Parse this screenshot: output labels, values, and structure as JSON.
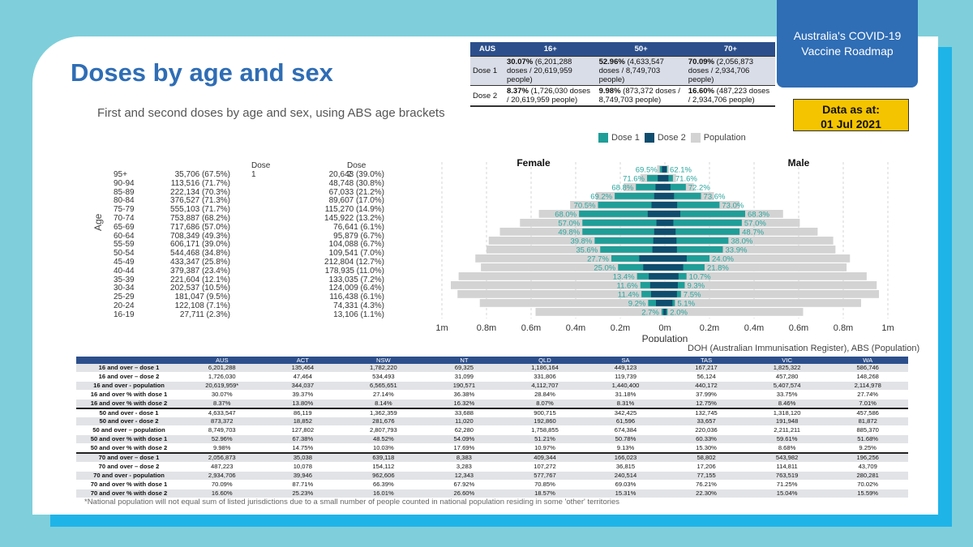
{
  "header": {
    "title": "Doses by age and sex",
    "subtitle": "First and second doses by age and sex, using ABS age brackets",
    "roadmap_line1": "Australia's COVID-19",
    "roadmap_line2": "Vaccine Roadmap",
    "data_as_at_line1": "Data as at:",
    "data_as_at_line2": "01 Jul 2021"
  },
  "summary_table": {
    "headers": [
      "AUS",
      "16+",
      "50+",
      "70+"
    ],
    "rows": [
      {
        "label": "Dose 1",
        "cells": [
          {
            "pct": "30.07%",
            "rest": " (6,201,288 doses / 20,619,959 people)"
          },
          {
            "pct": "52.96%",
            "rest": " (4,633,547 doses / 8,749,703 people)"
          },
          {
            "pct": "70.09%",
            "rest": " (2,056,873 doses / 2,934,706 people)"
          }
        ]
      },
      {
        "label": "Dose 2",
        "cells": [
          {
            "pct": "8.37%",
            "rest": " (1,726,030 doses / 20,619,959 people)"
          },
          {
            "pct": "9.98%",
            "rest": " (873,372 doses / 8,749,703 people)"
          },
          {
            "pct": "16.60%",
            "rest": " (487,223 doses / 2,934,706 people)"
          }
        ]
      }
    ]
  },
  "legend": {
    "dose1": "Dose 1",
    "dose2": "Dose 2",
    "population": "Population",
    "colors": {
      "dose1": "#1f9e98",
      "dose2": "#0e4d6e",
      "population": "#d3d3d3",
      "label": "#2aa59e"
    }
  },
  "dose_table": {
    "age_label": "Age",
    "dose1_header": "Dose 1",
    "dose2_header": "Dose 2",
    "rows": [
      {
        "age": "95+",
        "d1": "35,706 (67.5%)",
        "d2": "20,643 (39.0%)"
      },
      {
        "age": "90-94",
        "d1": "113,516 (71.7%)",
        "d2": "48,748 (30.8%)"
      },
      {
        "age": "85-89",
        "d1": "222,134 (70.3%)",
        "d2": "67,033 (21.2%)"
      },
      {
        "age": "80-84",
        "d1": "376,527 (71.3%)",
        "d2": "89,607 (17.0%)"
      },
      {
        "age": "75-79",
        "d1": "555,103 (71.7%)",
        "d2": "115,270 (14.9%)"
      },
      {
        "age": "70-74",
        "d1": "753,887 (68.2%)",
        "d2": "145,922 (13.2%)"
      },
      {
        "age": "65-69",
        "d1": "717,686 (57.0%)",
        "d2": "76,641 (6.1%)"
      },
      {
        "age": "60-64",
        "d1": "708,349 (49.3%)",
        "d2": "95,879 (6.7%)"
      },
      {
        "age": "55-59",
        "d1": "606,171 (39.0%)",
        "d2": "104,088 (6.7%)"
      },
      {
        "age": "50-54",
        "d1": "544,468 (34.8%)",
        "d2": "109,541 (7.0%)"
      },
      {
        "age": "45-49",
        "d1": "433,347 (25.8%)",
        "d2": "212,804 (12.7%)"
      },
      {
        "age": "40-44",
        "d1": "379,387 (23.4%)",
        "d2": "178,935 (11.0%)"
      },
      {
        "age": "35-39",
        "d1": "221,604 (12.1%)",
        "d2": "133,035 (7.2%)"
      },
      {
        "age": "30-34",
        "d1": "202,537 (10.5%)",
        "d2": "124,009 (6.4%)"
      },
      {
        "age": "25-29",
        "d1": "181,047 (9.5%)",
        "d2": "116,438 (6.1%)"
      },
      {
        "age": "20-24",
        "d1": "122,108 (7.1%)",
        "d2": "74,331 (4.3%)"
      },
      {
        "age": "16-19",
        "d1": "27,711 (2.3%)",
        "d2": "13,106 (1.1%)"
      }
    ]
  },
  "chart_data": {
    "type": "bar",
    "orientation": "horizontal-population-pyramid",
    "categories": [
      "95+",
      "90-94",
      "85-89",
      "80-84",
      "75-79",
      "70-74",
      "65-69",
      "60-64",
      "55-59",
      "50-54",
      "45-49",
      "40-44",
      "35-39",
      "30-34",
      "25-29",
      "20-24",
      "16-19"
    ],
    "xlabel": "Population",
    "xticks": [
      "1m",
      "0.8m",
      "0.6m",
      "0.4m",
      "0.2m",
      "0m",
      "0.2m",
      "0.4m",
      "0.6m",
      "0.8m",
      "1m"
    ],
    "xlim": [
      -1000000,
      1000000
    ],
    "sides": {
      "left": "Female",
      "right": "Male"
    },
    "series": [
      {
        "name": "Population",
        "female": [
          35000,
          110000,
          185000,
          310000,
          425000,
          565000,
          650000,
          740000,
          790000,
          800000,
          850000,
          825000,
          925000,
          960000,
          930000,
          830000,
          580000
        ],
        "male": [
          18000,
          50000,
          130000,
          220000,
          335000,
          530000,
          605000,
          685000,
          755000,
          765000,
          830000,
          815000,
          905000,
          950000,
          960000,
          880000,
          620000
        ]
      },
      {
        "name": "Dose 1",
        "female": [
          23000,
          80000,
          130000,
          225000,
          300000,
          385000,
          370000,
          370000,
          315000,
          290000,
          240000,
          210000,
          125000,
          110000,
          105000,
          75000,
          15000
        ],
        "male": [
          11000,
          36000,
          94000,
          162000,
          245000,
          360000,
          345000,
          335000,
          285000,
          260000,
          200000,
          178000,
          97000,
          89000,
          72000,
          45000,
          12000
        ]
      },
      {
        "name": "Dose 2",
        "female": [
          13000,
          32000,
          42000,
          48000,
          60000,
          77000,
          38000,
          48000,
          52000,
          56000,
          115000,
          97000,
          72000,
          66000,
          62000,
          40000,
          7000
        ],
        "male": [
          7000,
          16000,
          25000,
          41000,
          55000,
          69000,
          38000,
          48000,
          52000,
          54000,
          98000,
          82000,
          61000,
          58000,
          54000,
          34000,
          6000
        ]
      }
    ],
    "pct_labels": {
      "female": [
        "69.5%",
        "71.6%",
        "68.8%",
        "69.2%",
        "70.5%",
        "68.0%",
        "57.0%",
        "49.8%",
        "39.8%",
        "35.6%",
        "27.7%",
        "25.0%",
        "13.4%",
        "11.6%",
        "11.4%",
        "9.2%",
        "2.7%"
      ],
      "male": [
        "62.1%",
        "71.6%",
        "72.2%",
        "73.6%",
        "73.0%",
        "68.3%",
        "57.0%",
        "48.7%",
        "38.0%",
        "33.9%",
        "24.0%",
        "21.8%",
        "10.7%",
        "9.3%",
        "7.5%",
        "5.1%",
        "2.0%"
      ]
    }
  },
  "source_note": "DOH (Australian Immunisation Register), ABS (Population)",
  "jurisdiction_table": {
    "headers": [
      "",
      "AUS",
      "ACT",
      "NSW",
      "NT",
      "QLD",
      "SA",
      "TAS",
      "VIC",
      "WA"
    ],
    "rows": [
      [
        "16 and over – dose 1",
        "6,201,288",
        "135,464",
        "1,782,220",
        "69,325",
        "1,186,164",
        "449,123",
        "167,217",
        "1,825,322",
        "586,746"
      ],
      [
        "16 and over – dose 2",
        "1,726,030",
        "47,464",
        "534,493",
        "31,099",
        "331,806",
        "119,739",
        "56,124",
        "457,280",
        "148,268"
      ],
      [
        "16 and over - population",
        "20,619,959*",
        "344,037",
        "6,565,651",
        "190,571",
        "4,112,707",
        "1,440,400",
        "440,172",
        "5,407,574",
        "2,114,978"
      ],
      [
        "16 and over % with dose 1",
        "30.07%",
        "39.37%",
        "27.14%",
        "36.38%",
        "28.84%",
        "31.18%",
        "37.99%",
        "33.75%",
        "27.74%"
      ],
      [
        "16 and over % with dose 2",
        "8.37%",
        "13.80%",
        "8.14%",
        "16.32%",
        "8.07%",
        "8.31%",
        "12.75%",
        "8.46%",
        "7.01%"
      ],
      [
        "50 and over - dose 1",
        "4,633,547",
        "86,119",
        "1,362,359",
        "33,688",
        "900,715",
        "342,425",
        "132,745",
        "1,318,120",
        "457,586"
      ],
      [
        "50 and over - dose 2",
        "873,372",
        "18,852",
        "281,676",
        "11,020",
        "192,860",
        "61,596",
        "33,657",
        "191,948",
        "81,872"
      ],
      [
        "50 and over – population",
        "8,749,703",
        "127,802",
        "2,807,793",
        "62,280",
        "1,758,855",
        "674,384",
        "220,036",
        "2,211,211",
        "885,370"
      ],
      [
        "50 and over % with dose 1",
        "52.96%",
        "67.38%",
        "48.52%",
        "54.09%",
        "51.21%",
        "50.78%",
        "60.33%",
        "59.61%",
        "51.68%"
      ],
      [
        "50 and over % with dose 2",
        "9.98%",
        "14.75%",
        "10.03%",
        "17.69%",
        "10.97%",
        "9.13%",
        "15.30%",
        "8.68%",
        "9.25%"
      ],
      [
        "70 and over – dose 1",
        "2,056,873",
        "35,038",
        "639,118",
        "8,383",
        "409,344",
        "166,023",
        "58,802",
        "543,982",
        "196,256"
      ],
      [
        "70 and over – dose 2",
        "487,223",
        "10,078",
        "154,112",
        "3,283",
        "107,272",
        "36,815",
        "17,206",
        "114,811",
        "43,709"
      ],
      [
        "70 and over - population",
        "2,934,706",
        "39,946",
        "962,606",
        "12,343",
        "577,767",
        "240,514",
        "77,155",
        "763,519",
        "280,281"
      ],
      [
        "70 and over % with dose 1",
        "70.09%",
        "87.71%",
        "66.39%",
        "67.92%",
        "70.85%",
        "69.03%",
        "76.21%",
        "71.25%",
        "70.02%"
      ],
      [
        "70 and over % with dose 2",
        "16.60%",
        "25.23%",
        "16.01%",
        "26.60%",
        "18.57%",
        "15.31%",
        "22.30%",
        "15.04%",
        "15.59%"
      ]
    ],
    "footnote": "*National population will not equal sum of listed jurisdictions due to a small number of people counted in national population residing in some 'other' territories"
  }
}
